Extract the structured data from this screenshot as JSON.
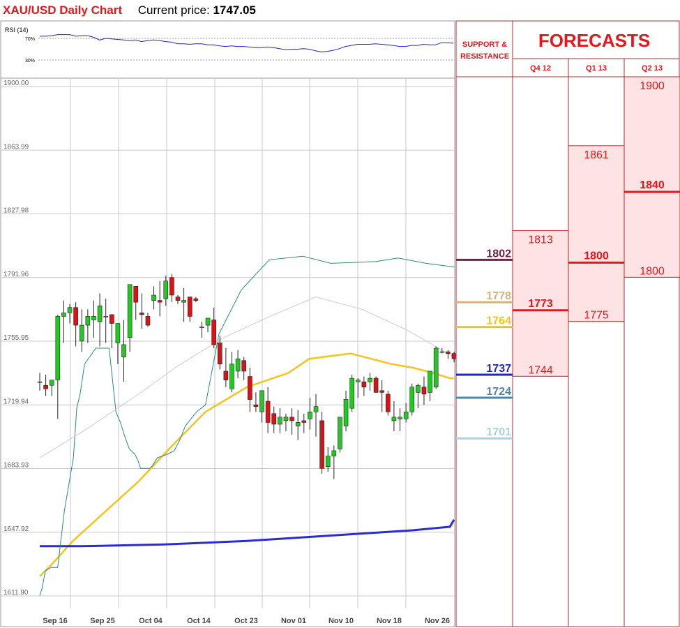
{
  "header": {
    "title": "XAU/USD Daily Chart",
    "price_label": "Current price:",
    "price_value": "1747.05"
  },
  "rsi": {
    "label": "RSI (14)",
    "level_70": "70%",
    "level_30": "30%",
    "values": [
      74,
      74,
      75,
      77,
      77,
      77,
      74,
      75,
      75,
      72,
      67,
      70,
      69,
      68,
      67,
      66,
      67,
      64,
      66,
      67,
      66,
      64,
      63,
      60,
      60,
      59,
      60,
      60,
      58,
      58,
      56,
      55,
      56,
      55,
      55,
      54,
      53,
      53,
      54,
      53,
      51,
      49,
      50,
      50,
      51,
      50,
      47,
      45,
      46,
      48,
      51,
      55,
      57,
      59,
      59,
      59,
      60,
      59,
      58,
      57,
      55,
      55,
      57,
      57,
      59,
      58,
      58,
      62,
      62,
      61
    ]
  },
  "chart_data": {
    "type": "candlestick",
    "y_ticks": [
      "1900.00",
      "1863.99",
      "1827.98",
      "1791.96",
      "1755.95",
      "1719.94",
      "1683.93",
      "1647.92",
      "1611.90"
    ],
    "ylim": [
      1611.9,
      1900.0
    ],
    "x_ticks": [
      "Sep 16",
      "Sep 25",
      "Oct 04",
      "Oct 14",
      "Oct 23",
      "Nov 01",
      "Nov 10",
      "Nov 18",
      "Nov 26"
    ],
    "grid": true,
    "candles": [
      [
        1733,
        1738,
        1728,
        1733
      ],
      [
        1731,
        1737,
        1725,
        1729
      ],
      [
        1731,
        1734,
        1725,
        1734
      ],
      [
        1734,
        1771,
        1712,
        1770
      ],
      [
        1770,
        1779,
        1755,
        1772
      ],
      [
        1772,
        1777,
        1766,
        1775
      ],
      [
        1775,
        1778,
        1753,
        1765
      ],
      [
        1756,
        1774,
        1750,
        1765
      ],
      [
        1765,
        1774,
        1755,
        1770
      ],
      [
        1768,
        1779,
        1758,
        1770
      ],
      [
        1767,
        1783,
        1753,
        1776
      ],
      [
        1770,
        1780,
        1755,
        1770
      ],
      [
        1771,
        1771,
        1752,
        1766
      ],
      [
        1755,
        1765,
        1743,
        1766
      ],
      [
        1747,
        1768,
        1733,
        1754
      ],
      [
        1758,
        1787,
        1750,
        1788
      ],
      [
        1787,
        1787,
        1768,
        1778
      ],
      [
        1772,
        1783,
        1763,
        1771
      ],
      [
        1770,
        1772,
        1764,
        1765
      ],
      [
        1779,
        1787,
        1774,
        1782
      ],
      [
        1779,
        1790,
        1770,
        1778
      ],
      [
        1780,
        1793,
        1776,
        1790
      ],
      [
        1792,
        1794,
        1778,
        1782
      ],
      [
        1781,
        1782,
        1777,
        1779
      ],
      [
        1778,
        1786,
        1767,
        1779
      ],
      [
        1781,
        1781,
        1767,
        1770
      ],
      [
        1780,
        1781,
        1778,
        1779
      ],
      [
        1764,
        1767,
        1758,
        1764
      ],
      [
        1765,
        1768,
        1761,
        1769
      ],
      [
        1768,
        1775,
        1752,
        1754
      ],
      [
        1755,
        1759,
        1740,
        1743
      ],
      [
        1739,
        1752,
        1730,
        1734
      ],
      [
        1729,
        1750,
        1727,
        1743
      ],
      [
        1739,
        1751,
        1735,
        1746
      ],
      [
        1745,
        1747,
        1734,
        1739
      ],
      [
        1736,
        1741,
        1716,
        1723
      ],
      [
        1720,
        1727,
        1716,
        1719
      ],
      [
        1716,
        1726,
        1710,
        1728
      ],
      [
        1722,
        1730,
        1704,
        1710
      ],
      [
        1715,
        1719,
        1704,
        1709
      ],
      [
        1709,
        1718,
        1704,
        1713
      ],
      [
        1711,
        1715,
        1705,
        1713
      ],
      [
        1713,
        1718,
        1703,
        1711
      ],
      [
        1708,
        1717,
        1700,
        1710
      ],
      [
        1711,
        1715,
        1704,
        1710
      ],
      [
        1712,
        1724,
        1706,
        1716
      ],
      [
        1716,
        1726,
        1702,
        1719
      ],
      [
        1711,
        1716,
        1681,
        1684
      ],
      [
        1685,
        1696,
        1682,
        1691
      ],
      [
        1691,
        1697,
        1678,
        1694
      ],
      [
        1695,
        1713,
        1693,
        1713
      ],
      [
        1708,
        1728,
        1705,
        1723
      ],
      [
        1718,
        1737,
        1716,
        1735
      ],
      [
        1733,
        1735,
        1724,
        1734
      ],
      [
        1733,
        1736,
        1725,
        1730
      ],
      [
        1733,
        1738,
        1728,
        1735
      ],
      [
        1735,
        1736,
        1727,
        1727
      ],
      [
        1728,
        1734,
        1716,
        1727
      ],
      [
        1726,
        1728,
        1714,
        1716
      ],
      [
        1711,
        1722,
        1705,
        1713
      ],
      [
        1712,
        1718,
        1705,
        1713
      ],
      [
        1712,
        1721,
        1710,
        1716
      ],
      [
        1716,
        1732,
        1714,
        1730
      ],
      [
        1727,
        1732,
        1718,
        1731
      ],
      [
        1730,
        1736,
        1720,
        1726
      ],
      [
        1727,
        1738,
        1722,
        1739
      ],
      [
        1730,
        1753,
        1729,
        1752
      ],
      [
        1750,
        1752,
        1749,
        1750
      ],
      [
        1750,
        1751,
        1746,
        1749
      ],
      [
        1749,
        1750,
        1744,
        1746
      ]
    ],
    "series": [
      {
        "name": "",
        "color": "#f5c31e",
        "values": [
          [
            0,
            1623
          ],
          [
            3,
            1630
          ],
          [
            8,
            1643
          ],
          [
            16,
            1660
          ],
          [
            24,
            1677
          ],
          [
            32,
            1697
          ],
          [
            40,
            1716
          ],
          [
            50,
            1730
          ],
          [
            60,
            1738
          ],
          [
            65,
            1746
          ],
          [
            75,
            1749
          ],
          [
            85,
            1743
          ],
          [
            90,
            1741
          ],
          [
            95,
            1738
          ],
          [
            99,
            1735
          ],
          [
            100,
            1735
          ]
        ]
      },
      {
        "name": "",
        "color": "#2b2bd0",
        "values": [
          [
            0,
            1640
          ],
          [
            10,
            1640
          ],
          [
            30,
            1641
          ],
          [
            50,
            1643
          ],
          [
            70,
            1646
          ],
          [
            90,
            1649
          ],
          [
            99,
            1651
          ],
          [
            100,
            1655
          ]
        ]
      },
      {
        "name": "",
        "color": "#2a8a7a",
        "values": [
          [
            0,
            1612
          ],
          [
            2,
            1616
          ],
          [
            5,
            1626
          ],
          [
            10,
            1628
          ],
          [
            16,
            1628
          ],
          [
            22,
            1660
          ],
          [
            30,
            1690
          ],
          [
            33,
            1718
          ],
          [
            36,
            1726
          ],
          [
            40,
            1743
          ],
          [
            50,
            1752
          ],
          [
            62,
            1752
          ],
          [
            68,
            1716
          ],
          [
            72,
            1710
          ],
          [
            76,
            1702
          ],
          [
            80,
            1695
          ],
          [
            85,
            1692
          ],
          [
            88,
            1688
          ],
          [
            90,
            1684
          ],
          [
            94,
            1684
          ],
          [
            98,
            1684
          ],
          [
            100,
            1685
          ],
          [
            105,
            1690
          ],
          [
            114,
            1692
          ],
          [
            120,
            1694
          ],
          [
            125,
            1700
          ],
          [
            130,
            1708
          ],
          [
            140,
            1716
          ],
          [
            148,
            1720
          ],
          [
            152,
            1733
          ],
          [
            160,
            1760
          ],
          [
            180,
            1785
          ],
          [
            205,
            1802
          ],
          [
            235,
            1804
          ],
          [
            260,
            1800
          ],
          [
            300,
            1801
          ],
          [
            320,
            1803
          ],
          [
            345,
            1800
          ],
          [
            370,
            1798
          ]
        ]
      },
      {
        "name": "",
        "color": "#cccccc",
        "values": [
          [
            0,
            1690
          ],
          [
            10,
            1706
          ],
          [
            22,
            1727
          ],
          [
            30,
            1742
          ],
          [
            40,
            1758
          ],
          [
            50,
            1770
          ],
          [
            60,
            1781
          ],
          [
            70,
            1774
          ],
          [
            80,
            1762
          ],
          [
            90,
            1747
          ]
        ]
      }
    ],
    "levels": [
      {
        "label": "1802",
        "value": 1802,
        "color": "#6b2346"
      },
      {
        "label": "1778",
        "value": 1778,
        "color": "#d7b27a"
      },
      {
        "label": "1764",
        "value": 1764,
        "color": "#f5c31e"
      },
      {
        "label": "1737",
        "value": 1737,
        "color": "#2323c8"
      },
      {
        "label": "1724",
        "value": 1724,
        "color": "#4d86a8"
      },
      {
        "label": "1701",
        "value": 1701,
        "color": "#a8d3dc"
      }
    ]
  },
  "forecasts": {
    "support_label": "SUPPORT & RESISTANCE",
    "title": "FORECASTS",
    "columns": [
      {
        "label": "Q4 12",
        "high": "1813",
        "avg": "1773",
        "low": "1744"
      },
      {
        "label": "Q1 13",
        "high": "1861",
        "avg": "1800",
        "low": "1775"
      },
      {
        "label": "Q2 13",
        "high": "1900",
        "avg": "1840",
        "low": "1800"
      }
    ]
  },
  "colors": {
    "accent": "#e8161b",
    "up": "#22c922",
    "down": "#d4161b",
    "grid": "#cccccc",
    "forecast_bg": "#fde3e4"
  }
}
